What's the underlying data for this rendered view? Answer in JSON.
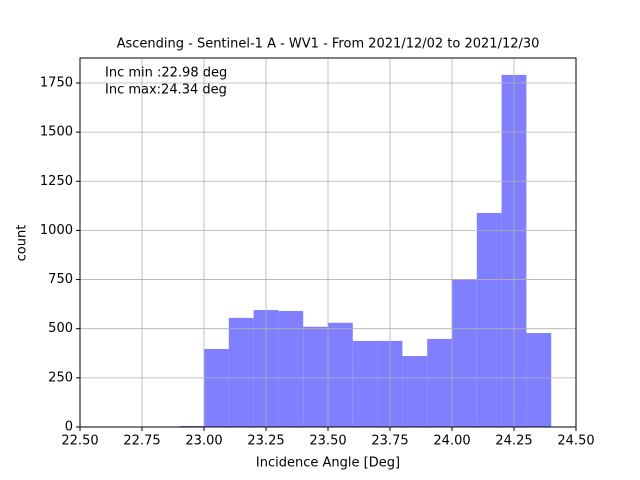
{
  "chart_data": {
    "type": "histogram",
    "title": "Ascending - Sentinel-1 A - WV1 - From 2021/12/02 to 2021/12/30",
    "x_label": "Incidence Angle [Deg]",
    "y_label": "count",
    "annotations": [
      "Inc min :22.98 deg",
      "Inc max:24.34 deg"
    ],
    "bins": [
      22.9,
      23.0,
      23.1,
      23.2,
      23.3,
      23.4,
      23.5,
      23.6,
      23.7,
      23.8,
      23.9,
      24.0,
      24.1,
      24.2,
      24.3,
      24.4
    ],
    "values": [
      5,
      397,
      555,
      595,
      590,
      510,
      530,
      438,
      438,
      361,
      448,
      753,
      1089,
      1791,
      478
    ],
    "color": "#8080ff",
    "xlim": [
      22.5,
      24.5
    ],
    "xticks": [
      {
        "value": 22.5,
        "label": "22.50"
      },
      {
        "value": 22.75,
        "label": "22.75"
      },
      {
        "value": 23,
        "label": "23.00"
      },
      {
        "value": 23.25,
        "label": "23.25"
      },
      {
        "value": 23.5,
        "label": "23.50"
      },
      {
        "value": 23.75,
        "label": "23.75"
      },
      {
        "value": 24,
        "label": "24.00"
      },
      {
        "value": 24.25,
        "label": "24.25"
      },
      {
        "value": 24.5,
        "label": "24.50"
      }
    ],
    "ylim": [
      0,
      1877
    ],
    "yticks": [
      0,
      250,
      500,
      750,
      1000,
      1250,
      1500,
      1750
    ],
    "grid": true
  }
}
